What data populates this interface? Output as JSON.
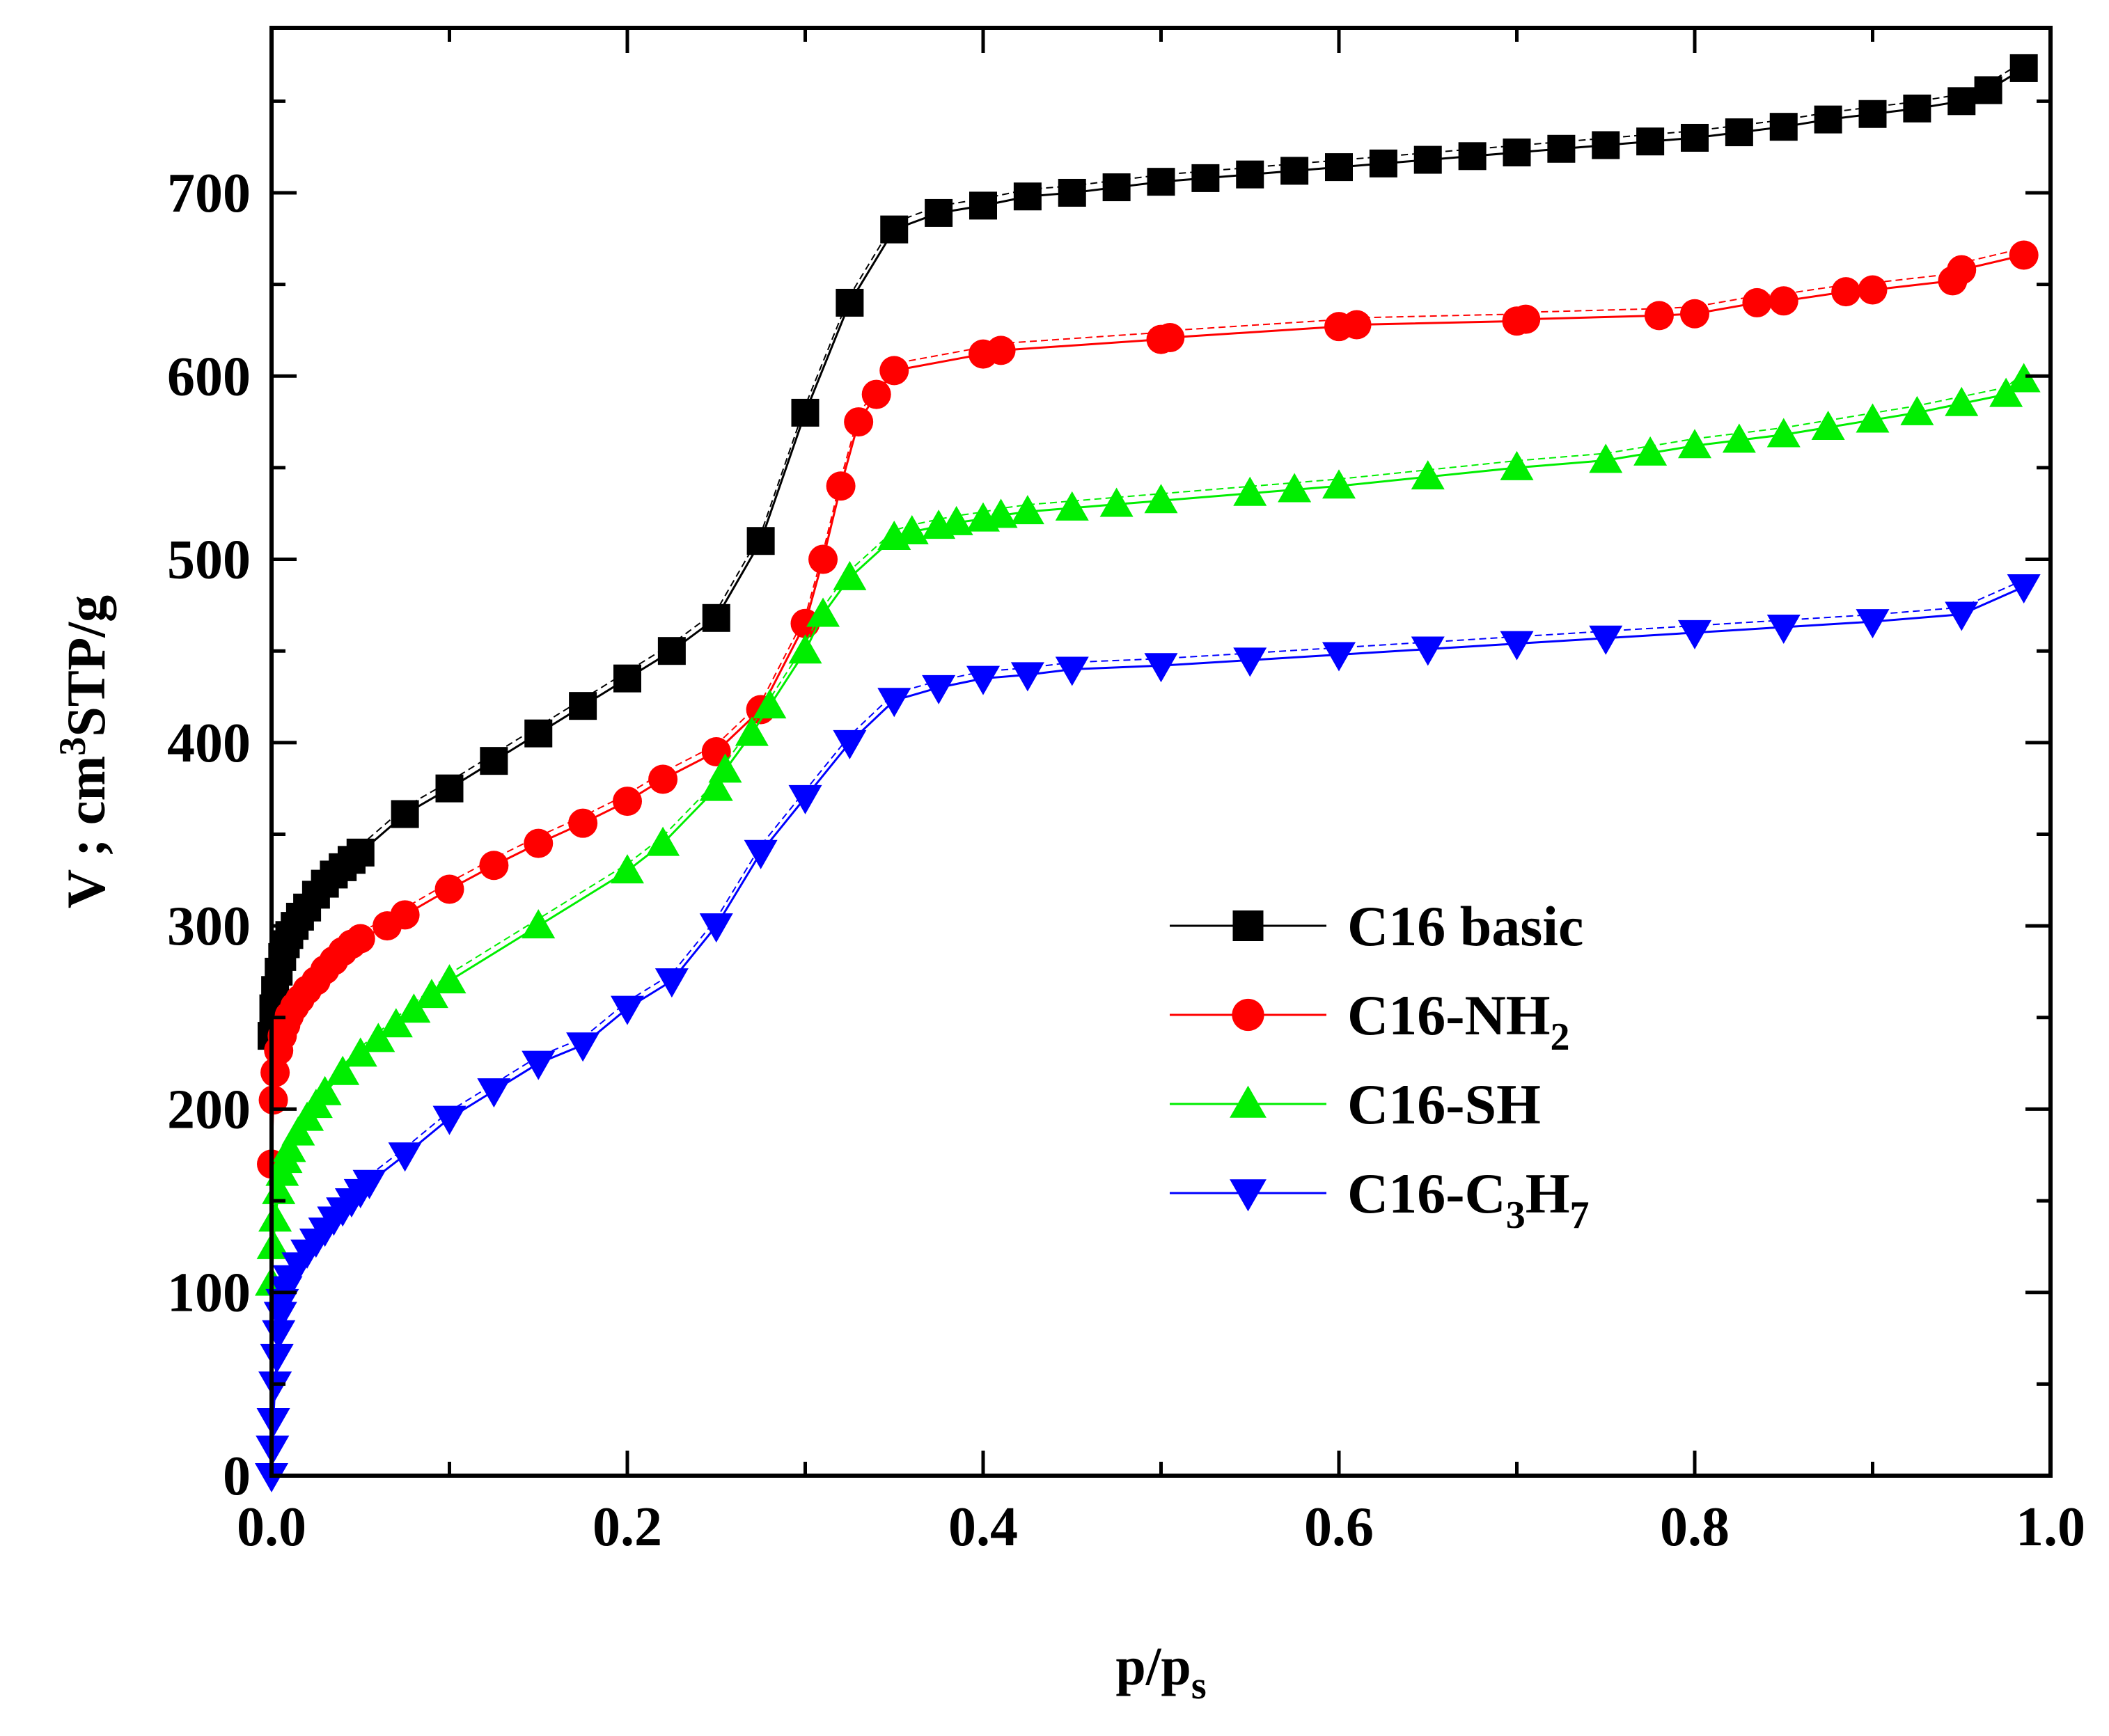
{
  "chart_data": {
    "type": "line",
    "title": "",
    "xlabel": {
      "main": "p/p",
      "sub": "s"
    },
    "ylabel": {
      "pre": "V ; cm",
      "sup": "3",
      "post": "STP/g"
    },
    "xlim": [
      0,
      1
    ],
    "ylim": [
      0,
      790
    ],
    "x_ticks": [
      0,
      0.2,
      0.4,
      0.6,
      0.8,
      1.0
    ],
    "x_tick_labels": [
      "0.0",
      "0.2",
      "0.4",
      "0.6",
      "0.8",
      "1.0"
    ],
    "y_ticks": [
      0,
      100,
      200,
      300,
      400,
      500,
      600,
      700
    ],
    "y_tick_labels": [
      "0",
      "100",
      "200",
      "300",
      "400",
      "500",
      "600",
      "700"
    ],
    "grid": false,
    "legend_position": "center-right",
    "series": [
      {
        "name": "C16 basic",
        "legend": {
          "text": "C16 basic",
          "sub": "",
          "tail": ""
        },
        "color": "#000000",
        "marker": "square",
        "x": [
          0.0,
          0.001,
          0.002,
          0.004,
          0.006,
          0.008,
          0.01,
          0.013,
          0.016,
          0.02,
          0.025,
          0.03,
          0.035,
          0.04,
          0.045,
          0.05,
          0.075,
          0.1,
          0.125,
          0.15,
          0.175,
          0.2,
          0.225,
          0.25,
          0.275,
          0.3,
          0.325,
          0.35,
          0.375,
          0.4,
          0.425,
          0.45,
          0.475,
          0.5,
          0.525,
          0.55,
          0.575,
          0.6,
          0.625,
          0.65,
          0.675,
          0.7,
          0.725,
          0.75,
          0.775,
          0.8,
          0.825,
          0.85,
          0.875,
          0.9,
          0.925,
          0.95,
          0.965,
          0.985
        ],
        "y": [
          240,
          255,
          265,
          275,
          283,
          290,
          295,
          300,
          305,
          310,
          317,
          323,
          328,
          332,
          336,
          340,
          361,
          375,
          390,
          405,
          420,
          435,
          450,
          468,
          510,
          580,
          640,
          680,
          689,
          693,
          698,
          700,
          703,
          706,
          708,
          710,
          712,
          714,
          716,
          718,
          720,
          722,
          724,
          726,
          728,
          730,
          733,
          736,
          740,
          743,
          746,
          750,
          756,
          768
        ]
      },
      {
        "name": "C16-NH2",
        "legend": {
          "text": "C16-NH",
          "sub": "2",
          "tail": ""
        },
        "color": "#ff0000",
        "marker": "circle",
        "x": [
          0.0,
          0.001,
          0.002,
          0.004,
          0.006,
          0.008,
          0.01,
          0.013,
          0.016,
          0.02,
          0.025,
          0.03,
          0.035,
          0.04,
          0.045,
          0.05,
          0.065,
          0.075,
          0.1,
          0.125,
          0.15,
          0.175,
          0.2,
          0.22,
          0.25,
          0.275,
          0.3,
          0.31,
          0.32,
          0.33,
          0.34,
          0.35,
          0.4,
          0.41,
          0.5,
          0.505,
          0.6,
          0.61,
          0.7,
          0.705,
          0.78,
          0.8,
          0.835,
          0.85,
          0.885,
          0.9,
          0.945,
          0.95,
          0.985
        ],
        "y": [
          170,
          205,
          220,
          232,
          240,
          246,
          251,
          256,
          260,
          265,
          270,
          276,
          281,
          286,
          290,
          293,
          300,
          306,
          320,
          333,
          345,
          356,
          368,
          380,
          395,
          418,
          465,
          500,
          540,
          575,
          590,
          603,
          612,
          614,
          620,
          621,
          627,
          628,
          630,
          631,
          633,
          634,
          640,
          641,
          646,
          647,
          652,
          658,
          666
        ]
      },
      {
        "name": "C16-SH",
        "legend": {
          "text": "C16-SH",
          "sub": "",
          "tail": ""
        },
        "color": "#00ee00",
        "marker": "triangle-up",
        "x": [
          0.0,
          0.001,
          0.002,
          0.004,
          0.006,
          0.008,
          0.01,
          0.015,
          0.02,
          0.025,
          0.03,
          0.04,
          0.05,
          0.06,
          0.07,
          0.08,
          0.09,
          0.1,
          0.15,
          0.2,
          0.22,
          0.25,
          0.255,
          0.27,
          0.28,
          0.3,
          0.31,
          0.325,
          0.35,
          0.36,
          0.375,
          0.385,
          0.4,
          0.41,
          0.425,
          0.45,
          0.475,
          0.5,
          0.55,
          0.575,
          0.6,
          0.65,
          0.7,
          0.75,
          0.775,
          0.8,
          0.825,
          0.85,
          0.875,
          0.9,
          0.925,
          0.95,
          0.975,
          0.985
        ],
        "y": [
          105,
          125,
          140,
          155,
          165,
          172,
          178,
          187,
          195,
          202,
          209,
          220,
          230,
          238,
          246,
          254,
          262,
          270,
          300,
          330,
          345,
          375,
          385,
          405,
          420,
          450,
          470,
          490,
          512,
          515,
          518,
          520,
          522,
          524,
          526,
          528,
          530,
          532,
          536,
          538,
          540,
          545,
          550,
          554,
          558,
          562,
          565,
          568,
          572,
          576,
          580,
          585,
          590,
          598
        ]
      },
      {
        "name": "C16-C3H7",
        "legend": {
          "text": "C16-C",
          "sub": "3",
          "tail": "H",
          "sub2": "7"
        },
        "color": "#0000ff",
        "marker": "triangle-down",
        "x": [
          0.0,
          0.0005,
          0.001,
          0.002,
          0.003,
          0.004,
          0.005,
          0.006,
          0.008,
          0.01,
          0.015,
          0.02,
          0.025,
          0.03,
          0.035,
          0.04,
          0.045,
          0.05,
          0.055,
          0.075,
          0.1,
          0.125,
          0.15,
          0.175,
          0.2,
          0.225,
          0.25,
          0.275,
          0.3,
          0.325,
          0.35,
          0.375,
          0.4,
          0.425,
          0.45,
          0.5,
          0.55,
          0.6,
          0.65,
          0.7,
          0.75,
          0.8,
          0.85,
          0.9,
          0.95,
          0.985
        ],
        "y": [
          0,
          15,
          30,
          50,
          65,
          78,
          88,
          95,
          102,
          108,
          115,
          122,
          128,
          134,
          140,
          145,
          150,
          155,
          160,
          175,
          195,
          210,
          225,
          235,
          255,
          270,
          300,
          340,
          370,
          400,
          423,
          430,
          435,
          437,
          440,
          442,
          445,
          448,
          451,
          454,
          457,
          460,
          463,
          466,
          470,
          485
        ]
      }
    ]
  }
}
